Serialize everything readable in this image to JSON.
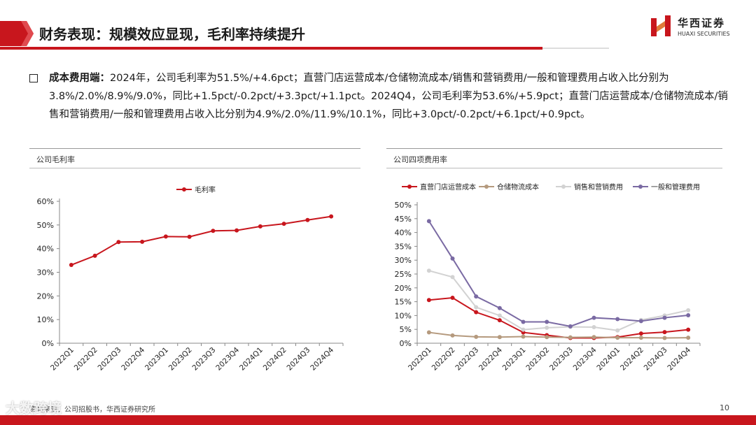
{
  "header": {
    "title": "财务表现：规模效应显现，毛利率持续提升",
    "logo_cn": "华西证券",
    "logo_en": "HUAXI SECURITIES"
  },
  "bullet": {
    "lead": "成本费用端：",
    "text": "2024年，公司毛利率为51.5%/+4.6pct；直营门店运营成本/仓储物流成本/销售和营销费用/一般和管理费用占收入比分别为3.8%/2.0%/8.9%/9.0%，同比+1.5pct/-0.2pct/+3.3pct/+1.1pct。2024Q4，公司毛利率为53.6%/+5.9pct；直营门店运营成本/仓储物流成本/销售和营销费用/一般和管理费用占收入比分别为4.9%/2.0%/11.9%/10.1%，同比+3.0pct/-0.2pct/+6.1pct/+0.9pct。"
  },
  "left_panel": {
    "title": "公司毛利率"
  },
  "right_panel": {
    "title": "公司四项费用率"
  },
  "footer": {
    "source": "资料来源：公司招股书，华西证券研究所",
    "page": "10",
    "watermark": "大数跨境"
  },
  "colors": {
    "accent": "#c8161d",
    "series1": "#c8161d",
    "series2": "#b59a7e",
    "series3": "#d2d2d2",
    "series4": "#7a6aa3"
  },
  "chart_data": [
    {
      "type": "line",
      "title": "公司毛利率",
      "categories": [
        "2022Q1",
        "2022Q2",
        "2022Q3",
        "2022Q4",
        "2023Q1",
        "2023Q2",
        "2023Q3",
        "2023Q4",
        "2024Q1",
        "2024Q2",
        "2024Q3",
        "2024Q4"
      ],
      "ylim": [
        0,
        60
      ],
      "yticks": [
        0,
        10,
        20,
        30,
        40,
        50,
        60
      ],
      "ytick_labels": [
        "0%",
        "10%",
        "20%",
        "30%",
        "40%",
        "50%",
        "60%"
      ],
      "legend_position": "top",
      "series": [
        {
          "name": "毛利率",
          "values": [
            33.1,
            37.0,
            42.8,
            42.9,
            45.1,
            45.0,
            47.5,
            47.7,
            49.4,
            50.5,
            52.1,
            53.6
          ]
        }
      ]
    },
    {
      "type": "line",
      "title": "公司四项费用率",
      "categories": [
        "2022Q1",
        "2022Q2",
        "2022Q3",
        "2022Q4",
        "2023Q1",
        "2023Q2",
        "2023Q3",
        "2023Q4",
        "2024Q1",
        "2024Q2",
        "2024Q3",
        "2024Q4"
      ],
      "ylim": [
        0,
        50
      ],
      "yticks": [
        0,
        5,
        10,
        15,
        20,
        25,
        30,
        35,
        40,
        45,
        50
      ],
      "ytick_labels": [
        "0%",
        "5%",
        "10%",
        "15%",
        "20%",
        "25%",
        "30%",
        "35%",
        "40%",
        "45%",
        "50%"
      ],
      "legend_position": "top",
      "series": [
        {
          "name": "直营门店运营成本",
          "values": [
            15.6,
            16.4,
            11.2,
            8.3,
            3.9,
            2.9,
            1.9,
            1.9,
            2.2,
            3.5,
            4.0,
            4.9
          ]
        },
        {
          "name": "仓储物流成本",
          "values": [
            3.9,
            2.8,
            2.3,
            2.2,
            2.4,
            2.2,
            2.1,
            2.2,
            2.0,
            2.0,
            1.9,
            2.0
          ]
        },
        {
          "name": "销售和营销费用",
          "values": [
            26.2,
            23.9,
            13.0,
            10.0,
            4.9,
            5.6,
            5.9,
            5.8,
            4.6,
            8.4,
            10.0,
            11.9
          ]
        },
        {
          "name": "一般和管理费用",
          "values": [
            44.1,
            30.6,
            16.9,
            12.7,
            7.7,
            7.7,
            6.1,
            9.2,
            8.7,
            8.0,
            9.2,
            10.1
          ]
        }
      ]
    }
  ]
}
